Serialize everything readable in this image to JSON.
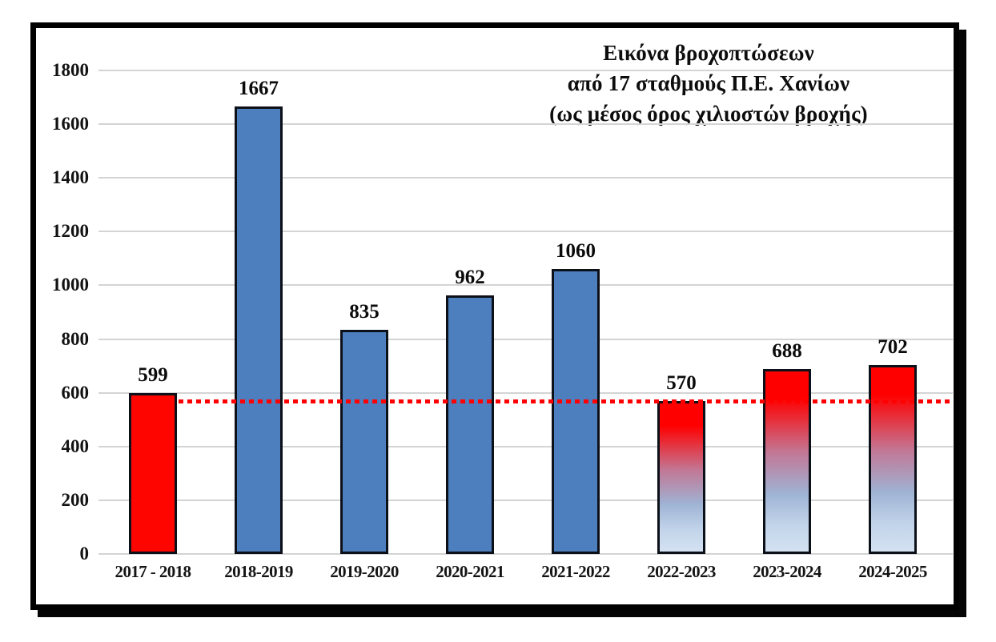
{
  "chart_data": {
    "type": "bar",
    "title_lines": [
      "Εικόνα βροχοπτώσεων",
      "από 17 σταθμούς Π.Ε. Χανίων",
      "(ως μέσος όρος χιλιοστών βροχής)"
    ],
    "categories": [
      "2017 - 2018",
      "2018-2019",
      "2019-2020",
      "2020-2021",
      "2021-2022",
      "2022-2023",
      "2023-2024",
      "2024-2025"
    ],
    "values": [
      599,
      1667,
      835,
      962,
      1060,
      570,
      688,
      702
    ],
    "bar_styles": [
      "solid-red",
      "solid-blue",
      "solid-blue",
      "solid-blue",
      "solid-blue",
      "red-blue-gradient",
      "red-blue-gradient",
      "red-blue-gradient"
    ],
    "xlabel": "",
    "ylabel": "",
    "ylim": [
      0,
      1800
    ],
    "yticks": [
      0,
      200,
      400,
      600,
      800,
      1000,
      1200,
      1400,
      1600,
      1800
    ],
    "grid": true,
    "legend_position": "none",
    "reference_line": {
      "value": 570,
      "style": "dotted",
      "color": "#ff0000"
    },
    "colors": {
      "red_bar": "#fe0500",
      "blue_bar": "#4d7ebd",
      "bar_border": "#0c1018",
      "gradient_top": "#ff0000",
      "gradient_mid": "#c27795",
      "gradient_bottom": "#d4e2f2",
      "gridline": "#d4d4d4",
      "axis_text": "#121212",
      "frame_border": "#000000",
      "background": "#ffffff"
    }
  }
}
